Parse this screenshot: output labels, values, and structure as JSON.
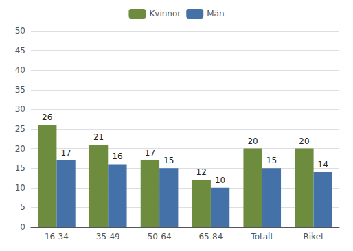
{
  "chart_data": {
    "type": "bar",
    "categories": [
      "16-34",
      "35-49",
      "50-64",
      "65-84",
      "Totalt",
      "Riket"
    ],
    "series": [
      {
        "name": "Kvinnor",
        "color": "#6d8c3e",
        "values": [
          26,
          21,
          17,
          12,
          20,
          20
        ]
      },
      {
        "name": "Män",
        "color": "#4472a8",
        "values": [
          17,
          16,
          15,
          10,
          15,
          14
        ]
      }
    ],
    "ylim": [
      0,
      50
    ],
    "yticks": [
      0,
      5,
      10,
      15,
      20,
      25,
      30,
      35,
      40,
      45,
      50
    ],
    "grid": true,
    "legend": "top",
    "data_labels": true
  }
}
